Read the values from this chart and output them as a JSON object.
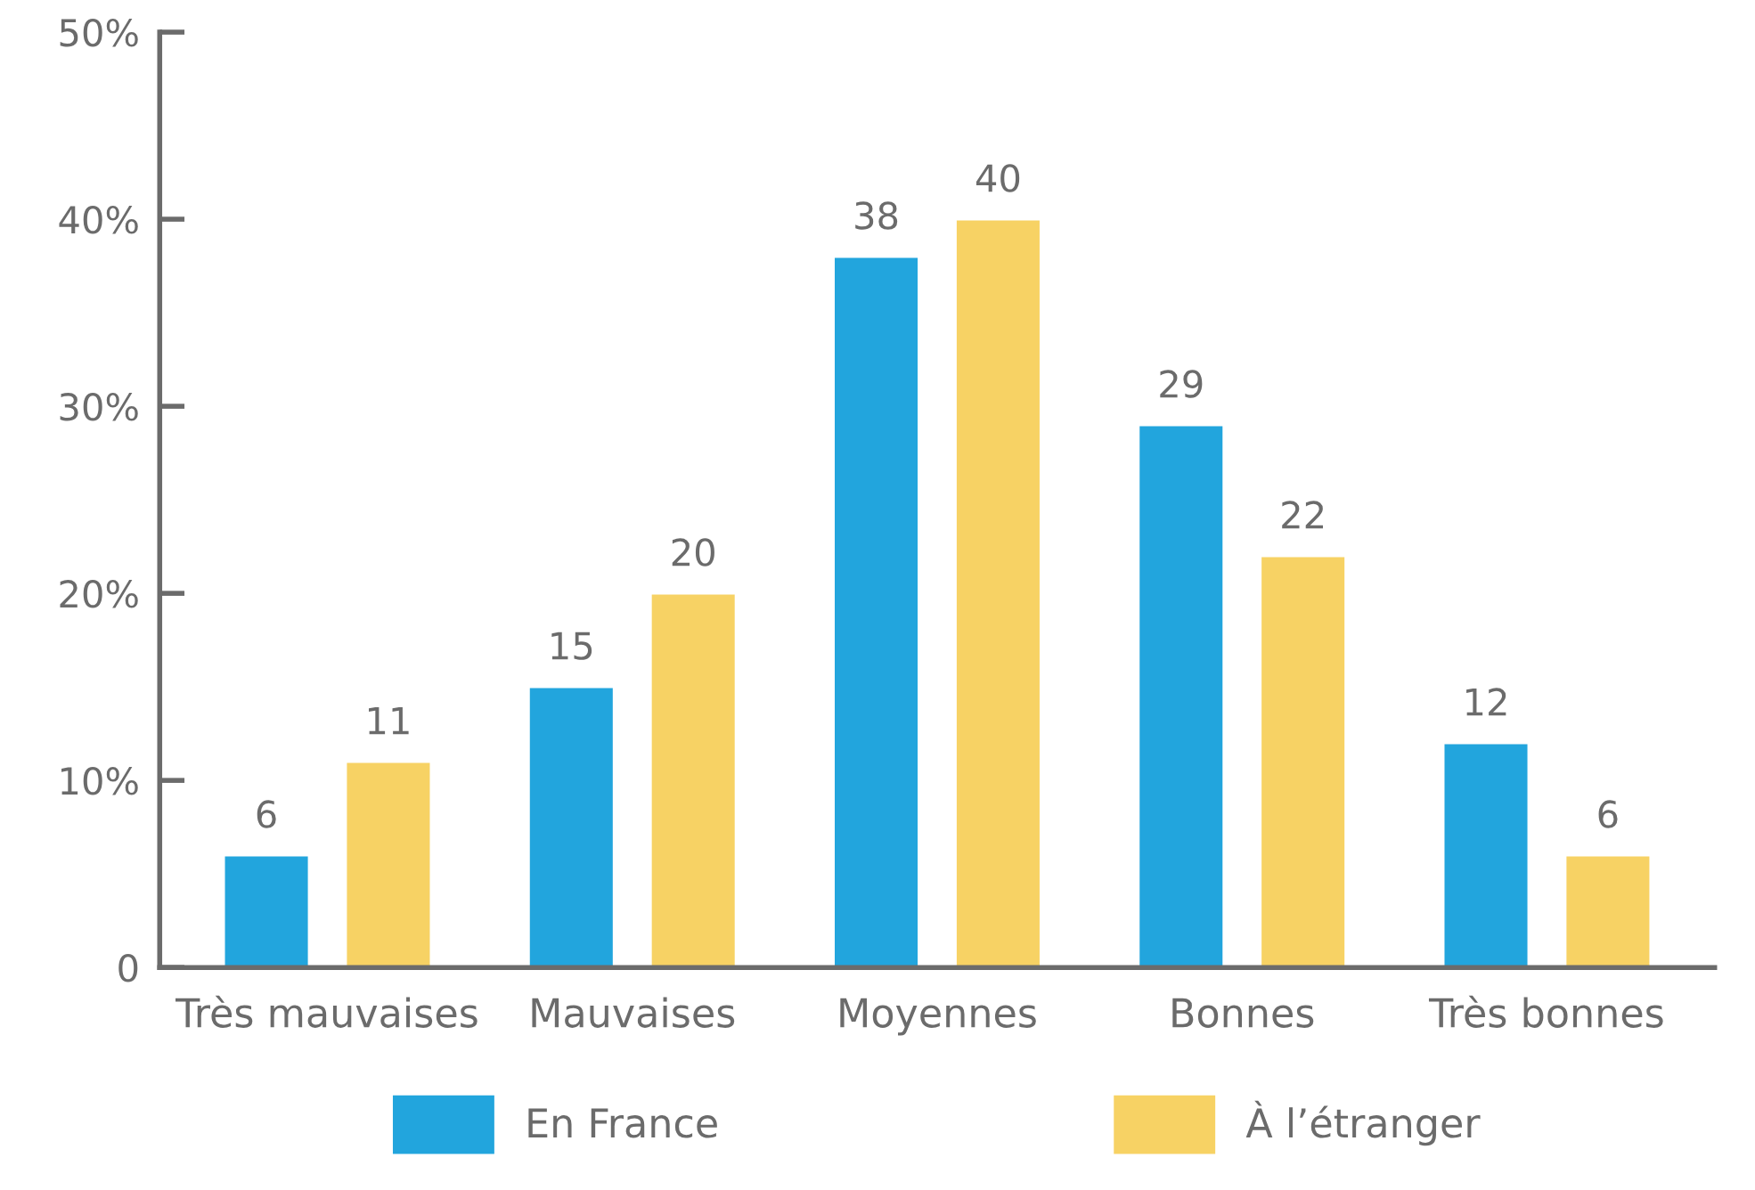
{
  "chart_data": {
    "type": "bar",
    "categories": [
      "Très mauvaises",
      "Mauvaises",
      "Moyennes",
      "Bonnes",
      "Très bonnes"
    ],
    "series": [
      {
        "name": "En France",
        "color": "#22a5dd",
        "values": [
          6,
          15,
          38,
          29,
          12
        ]
      },
      {
        "name": "À l’étranger",
        "color": "#f7d264",
        "values": [
          11,
          20,
          40,
          22,
          6
        ]
      }
    ],
    "ylim": [
      0,
      50
    ],
    "yticks": [
      {
        "value": 0,
        "label": "0"
      },
      {
        "value": 10,
        "label": "10%"
      },
      {
        "value": 20,
        "label": "20%"
      },
      {
        "value": 30,
        "label": "30%"
      },
      {
        "value": 40,
        "label": "40%"
      },
      {
        "value": 50,
        "label": "50%"
      }
    ],
    "data_labels": true,
    "grid": false,
    "legend": "bottom"
  }
}
